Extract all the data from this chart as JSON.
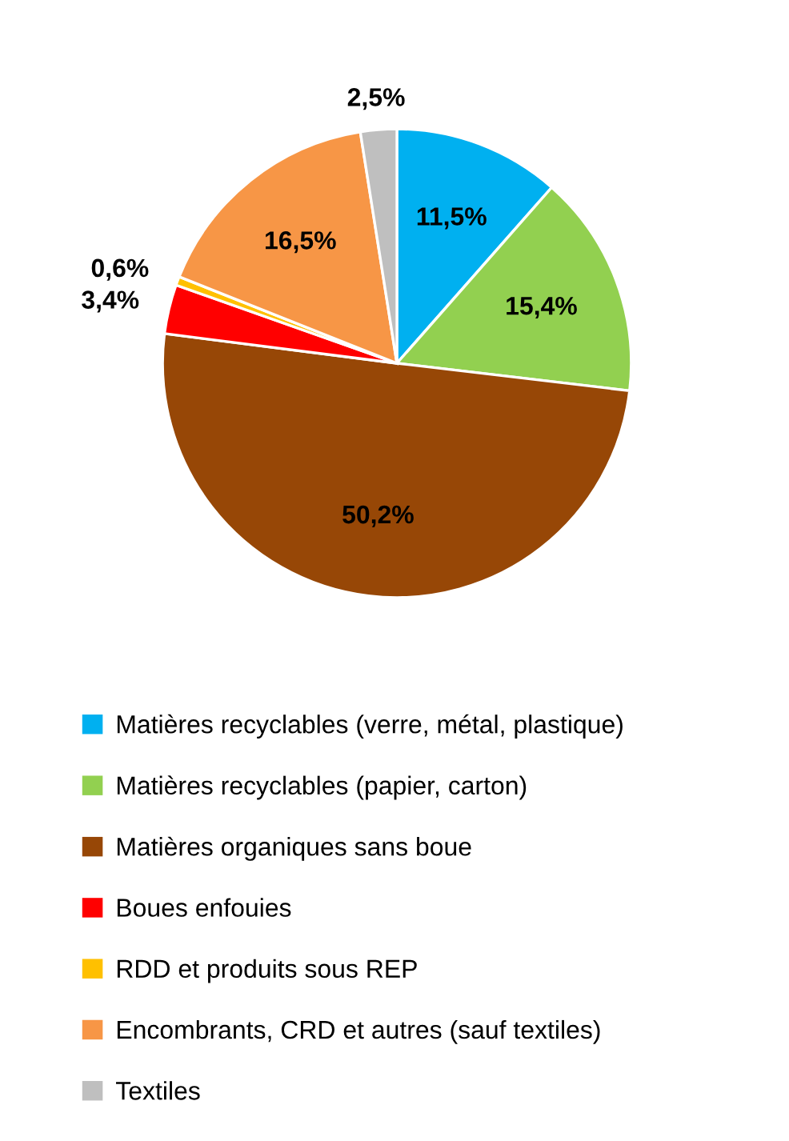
{
  "chart_data": {
    "type": "pie",
    "categories": [
      "Matières recyclables (verre, métal, plastique)",
      "Matières recyclables (papier, carton)",
      "Matières organiques sans boue",
      "Boues enfouies",
      "RDD et produits sous REP",
      "Encombrants, CRD et autres (sauf textiles)",
      "Textiles"
    ],
    "values": [
      11.5,
      15.4,
      50.2,
      3.4,
      0.6,
      16.5,
      2.5
    ],
    "value_labels": [
      "11,5%",
      "15,4%",
      "50,2%",
      "3,4%",
      "0,6%",
      "16,5%",
      "2,5%"
    ],
    "colors": [
      "#00b0f0",
      "#92d050",
      "#974706",
      "#ff0000",
      "#ffc000",
      "#f79646",
      "#bfbfbf"
    ],
    "legend": "bottom"
  }
}
